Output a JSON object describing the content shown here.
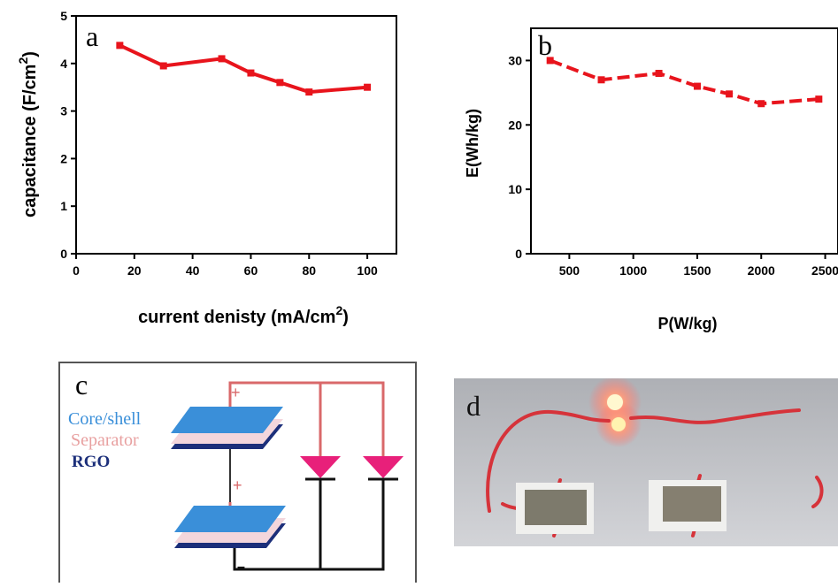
{
  "chart_data": [
    {
      "type": "line",
      "panel_label": "a",
      "xlabel": "current denisty (mA/cm",
      "xlabel_sup": "2",
      "xlabel_end": ")",
      "ylabel": "capacitance (F/cm",
      "ylabel_sup": "2",
      "ylabel_end": ")",
      "xlim": [
        0,
        110
      ],
      "ylim": [
        0,
        5
      ],
      "xticks": [
        0,
        20,
        40,
        60,
        80,
        100
      ],
      "yticks": [
        0,
        1,
        2,
        3,
        4,
        5
      ],
      "series": [
        {
          "color": "#e8141c",
          "x": [
            15,
            30,
            50,
            60,
            70,
            80,
            100
          ],
          "y": [
            4.38,
            3.95,
            4.1,
            3.8,
            3.6,
            3.4,
            3.5
          ]
        }
      ]
    },
    {
      "type": "line",
      "panel_label": "b",
      "xlabel": "P(W/kg)",
      "ylabel": "E(Wh/kg)",
      "xlim": [
        200,
        2600
      ],
      "ylim": [
        0,
        35
      ],
      "xticks": [
        500,
        1000,
        1500,
        2000,
        2500
      ],
      "yticks": [
        0,
        10,
        20,
        30
      ],
      "series": [
        {
          "color": "#e8141c",
          "line_style": "dashed",
          "x": [
            350,
            750,
            1200,
            1500,
            1750,
            2000,
            2450
          ],
          "y": [
            30,
            27,
            28,
            26,
            24.8,
            23.3,
            24
          ]
        }
      ]
    }
  ],
  "panel_c": {
    "label": "c",
    "legend": {
      "core_shell": "Core/shell",
      "separator": "Separator",
      "rgo": "RGO"
    },
    "plus_top": "+",
    "plus_bottom": "+",
    "minus": "–",
    "colors": {
      "core_shell": "#3a8fd9",
      "separator": "#e8a0a0",
      "rgo": "#1c2f7a",
      "wire": "#d9686a",
      "diode": "#e8207a"
    }
  },
  "panel_d": {
    "label": "d"
  }
}
